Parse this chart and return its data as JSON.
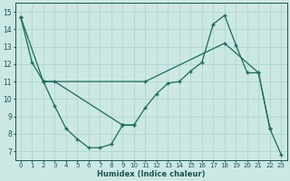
{
  "xlabel": "Humidex (Indice chaleur)",
  "xlim": [
    -0.5,
    23.5
  ],
  "ylim": [
    6.5,
    15.5
  ],
  "xticks": [
    0,
    1,
    2,
    3,
    4,
    5,
    6,
    7,
    8,
    9,
    10,
    11,
    12,
    13,
    14,
    15,
    16,
    17,
    18,
    19,
    20,
    21,
    22,
    23
  ],
  "yticks": [
    7,
    8,
    9,
    10,
    11,
    12,
    13,
    14,
    15
  ],
  "background_color": "#cce8e4",
  "grid_color": "#b0d4d0",
  "line_color": "#1a6b5a",
  "lines": [
    {
      "x": [
        0,
        2,
        11,
        18,
        21,
        22,
        23
      ],
      "y": [
        14.7,
        11.0,
        11.0,
        13.2,
        11.5,
        8.3,
        6.8
      ]
    },
    {
      "x": [
        0,
        1,
        2,
        3,
        9,
        10,
        11,
        12,
        13,
        14,
        15,
        16,
        17,
        18,
        19,
        20,
        21,
        22
      ],
      "y": [
        14.7,
        12.1,
        11.0,
        11.0,
        8.5,
        8.5,
        9.5,
        10.3,
        10.9,
        11.0,
        11.6,
        12.1,
        14.3,
        14.8,
        13.1,
        11.5,
        11.5,
        8.3
      ]
    },
    {
      "x": [
        2,
        3,
        4,
        5,
        6,
        7,
        8,
        9,
        10
      ],
      "y": [
        11.0,
        9.6,
        8.3,
        7.7,
        7.2,
        7.2,
        7.4,
        8.5,
        8.5
      ]
    }
  ],
  "figsize": [
    3.2,
    2.0
  ],
  "dpi": 100
}
